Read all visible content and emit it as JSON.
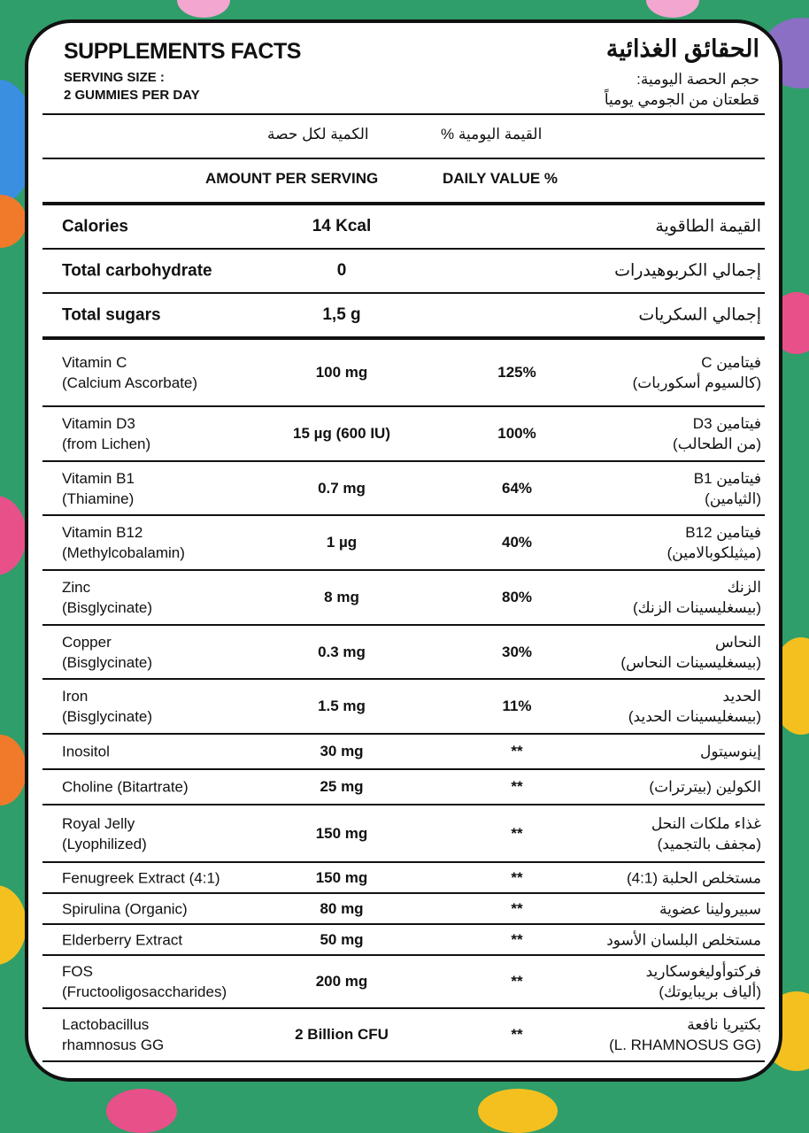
{
  "colors": {
    "background": "#2f9e6a",
    "card": "#ffffff",
    "ink": "#111111",
    "blobs": [
      "#e8508a",
      "#f4c01f",
      "#f07a2a",
      "#8b6fc4",
      "#3a8fe0",
      "#f3a6cf"
    ]
  },
  "header": {
    "title": "SUPPLEMENTS FACTS",
    "serving_label": "SERVING SIZE :",
    "serving_value": "2 GUMMIES PER DAY",
    "title_ar": "الحقائق الغذائية",
    "serving_label_ar": "حجم الحصة اليومية:",
    "serving_value_ar": "قطعتان من الجومي يومياً"
  },
  "columns": {
    "amount_ar": "الكمية لكل حصة",
    "dv_ar": "القيمة اليومية %",
    "amount": "AMOUNT PER SERVING",
    "dv": "DAILY VALUE %"
  },
  "rows": [
    {
      "name": [
        "Calories"
      ],
      "amount": "14 Kcal",
      "dv": "",
      "ar": "القيمة الطاقوية",
      "big": true
    },
    {
      "name": [
        "Total carbohydrate"
      ],
      "amount": "0",
      "dv": "",
      "ar": "إجمالي الكربوهيدرات",
      "big": true
    },
    {
      "name": [
        "Total sugars"
      ],
      "amount": "1,5 g",
      "dv": "",
      "ar": "إجمالي السكريات",
      "big": true
    },
    {
      "name": [
        "Vitamin C",
        "(Calcium Ascorbate)"
      ],
      "amount": "100 mg",
      "dv": "125%",
      "ar": "فيتامين C\n(كالسيوم أسكوربات)"
    },
    {
      "name": [
        "Vitamin D3",
        "(from Lichen)"
      ],
      "amount": "15 µg (600 IU)",
      "dv": "100%",
      "ar": "فيتامين D3\n(من الطحالب)"
    },
    {
      "name": [
        "Vitamin B1",
        "(Thiamine)"
      ],
      "amount": "0.7 mg",
      "dv": "64%",
      "ar": "فيتامين B1\n(الثيامين)"
    },
    {
      "name": [
        "Vitamin B12",
        "(Methylcobalamin)"
      ],
      "amount": "1 µg",
      "dv": "40%",
      "ar": "فيتامين B12\n(ميثيلكوبالامين)"
    },
    {
      "name": [
        "Zinc",
        "(Bisglycinate)"
      ],
      "amount": "8 mg",
      "dv": "80%",
      "ar": "الزنك\n(بيسغليسينات الزنك)"
    },
    {
      "name": [
        "Copper",
        "(Bisglycinate)"
      ],
      "amount": "0.3 mg",
      "dv": "30%",
      "ar": "النحاس\n(بيسغليسينات النحاس)"
    },
    {
      "name": [
        "Iron",
        "(Bisglycinate)"
      ],
      "amount": "1.5 mg",
      "dv": "11%",
      "ar": "الحديد\n(بيسغليسينات الحديد)"
    },
    {
      "name": [
        "Inositol"
      ],
      "amount": "30 mg",
      "dv": "**",
      "ar": "إينوسيتول"
    },
    {
      "name": [
        "Choline (Bitartrate)"
      ],
      "amount": "25 mg",
      "dv": "**",
      "ar": "الكولين (بيترترات)"
    },
    {
      "name": [
        "Royal Jelly",
        "(Lyophilized)"
      ],
      "amount": "150 mg",
      "dv": "**",
      "ar": "غذاء ملكات النحل\n(مجفف بالتجميد)"
    },
    {
      "name": [
        "Fenugreek Extract (4:1)"
      ],
      "amount": "150 mg",
      "dv": "**",
      "ar": "مستخلص الحلبة (4:1)"
    },
    {
      "name": [
        "Spirulina (Organic)"
      ],
      "amount": "80 mg",
      "dv": "**",
      "ar": "سبيرولينا عضوية"
    },
    {
      "name": [
        "Elderberry Extract"
      ],
      "amount": "50 mg",
      "dv": "**",
      "ar": "مستخلص البلسان الأسود"
    },
    {
      "name": [
        "FOS",
        "(Fructooligosaccharides)"
      ],
      "amount": "200 mg",
      "dv": "**",
      "ar": "فركتوأوليغوسكاريد\n(ألياف بريبايوتك)"
    },
    {
      "name": [
        "Lactobacillus",
        "rhamnosus GG"
      ],
      "amount": "2 Billion CFU",
      "dv": "**",
      "ar": "بكتيريا نافعة\n(L. RHAMNOSUS GG)"
    }
  ]
}
